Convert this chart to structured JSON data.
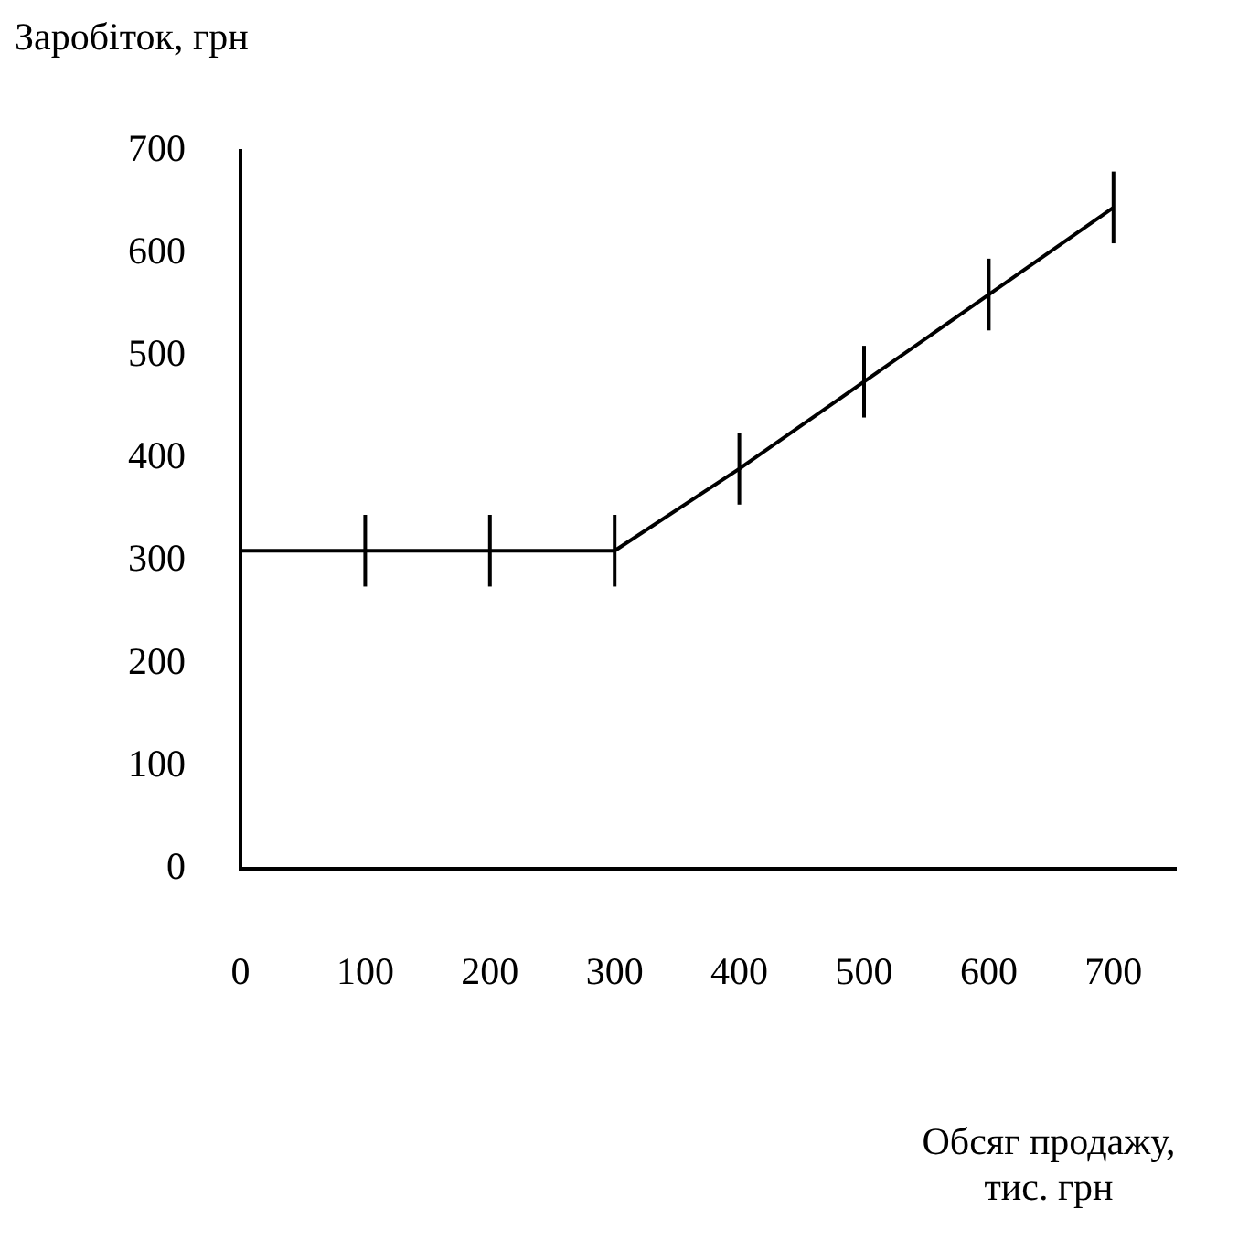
{
  "chart_data": {
    "type": "line",
    "ylabel": "Заробіток, грн",
    "xlabel": "Обсяг продажу, тис. грн",
    "x": [
      0,
      100,
      200,
      300,
      400,
      500,
      600,
      700
    ],
    "series": [
      {
        "color": "#000000",
        "values": [
          310,
          310,
          310,
          310,
          390,
          475,
          560,
          645
        ],
        "errors": [
          null,
          35,
          35,
          35,
          35,
          35,
          35,
          35
        ]
      }
    ],
    "xlim": [
      0,
      750
    ],
    "xticks": [
      0,
      100,
      200,
      300,
      400,
      500,
      600,
      700
    ],
    "ylim": [
      0,
      700
    ],
    "yticks": [
      0,
      100,
      200,
      300,
      400,
      500,
      600,
      700
    ],
    "grid": false,
    "legend": false,
    "marker": "none"
  }
}
